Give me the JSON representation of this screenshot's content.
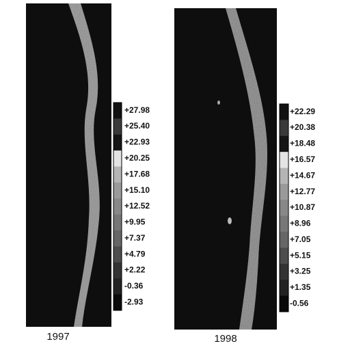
{
  "panels": [
    {
      "year": "1997",
      "colorbar_labels": [
        "+27.98",
        "+25.40",
        "+22.93",
        "+20.25",
        "+17.68",
        "+15.10",
        "+12.52",
        "+9.95",
        "+7.37",
        "+4.79",
        "+2.22",
        "-0.36",
        "-2.93"
      ]
    },
    {
      "year": "1998",
      "colorbar_labels": [
        "+22.29",
        "+20.38",
        "+18.48",
        "+16.57",
        "+14.67",
        "+12.77",
        "+10.87",
        "+8.96",
        "+7.05",
        "+5.15",
        "+3.25",
        "+1.35",
        "-0.56"
      ]
    }
  ]
}
